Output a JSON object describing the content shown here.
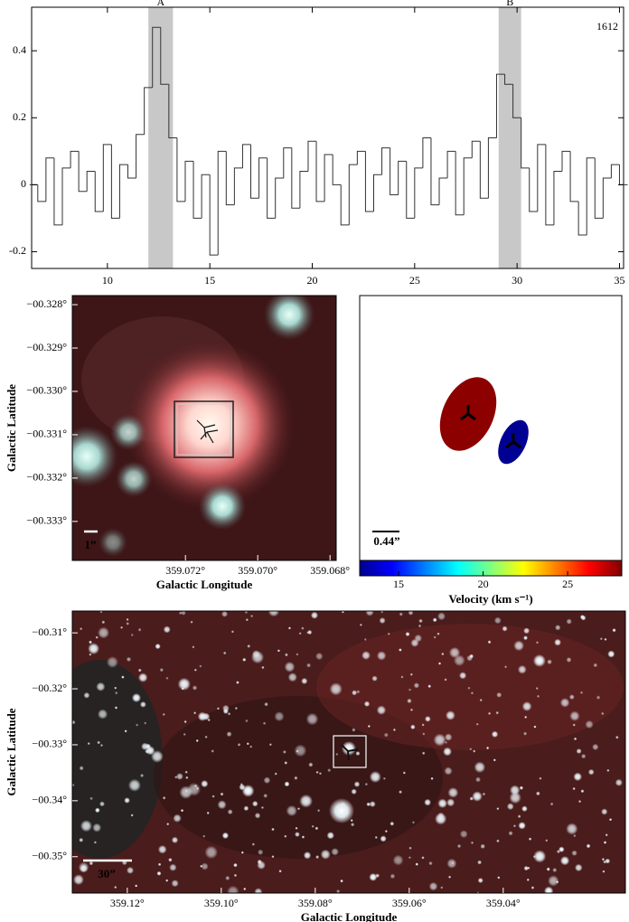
{
  "chart_data": [
    {
      "type": "step",
      "annotation": "1612",
      "bands": [
        {
          "label": "A",
          "range": [
            12.0,
            13.2
          ]
        },
        {
          "label": "B",
          "range": [
            29.1,
            30.2
          ]
        }
      ],
      "band_color": "#c8c8c8",
      "color": "#333333",
      "x": [
        6.4,
        6.8,
        7.2,
        7.6,
        8.0,
        8.4,
        8.8,
        9.2,
        9.6,
        10.0,
        10.4,
        10.8,
        11.2,
        11.6,
        12.0,
        12.4,
        12.8,
        13.2,
        13.6,
        14.0,
        14.4,
        14.8,
        15.2,
        15.6,
        16.0,
        16.4,
        16.8,
        17.2,
        17.6,
        18.0,
        18.4,
        18.8,
        19.2,
        19.6,
        20.0,
        20.4,
        20.8,
        21.2,
        21.6,
        22.0,
        22.4,
        22.8,
        23.2,
        23.6,
        24.0,
        24.4,
        24.8,
        25.2,
        25.6,
        26.0,
        26.4,
        26.8,
        27.2,
        27.6,
        28.0,
        28.4,
        28.8,
        29.2,
        29.6,
        30.0,
        30.4,
        30.8,
        31.2,
        31.6,
        32.0,
        32.4,
        32.8,
        33.2,
        33.6,
        34.0,
        34.4,
        34.8,
        35.2
      ],
      "values": [
        0.0,
        -0.05,
        0.08,
        -0.12,
        0.05,
        0.1,
        -0.02,
        0.04,
        -0.08,
        0.12,
        -0.1,
        0.06,
        0.02,
        0.15,
        0.29,
        0.47,
        0.3,
        0.14,
        -0.05,
        0.07,
        -0.1,
        0.03,
        -0.21,
        0.1,
        -0.06,
        0.05,
        0.12,
        -0.04,
        0.08,
        -0.1,
        0.02,
        0.11,
        -0.07,
        0.04,
        0.13,
        -0.05,
        0.09,
        0.0,
        -0.12,
        0.06,
        0.1,
        -0.08,
        0.03,
        0.11,
        -0.03,
        0.07,
        -0.1,
        0.05,
        0.14,
        -0.06,
        0.02,
        0.1,
        -0.09,
        0.08,
        0.13,
        -0.04,
        0.14,
        0.33,
        0.3,
        0.2,
        0.05,
        -0.08,
        0.12,
        -0.12,
        0.04,
        0.1,
        -0.05,
        -0.15,
        0.08,
        -0.1,
        0.02,
        0.06,
        0.0
      ],
      "xlim": [
        6.3,
        35.2
      ],
      "ylim": [
        -0.25,
        0.53
      ],
      "xticks": [
        10,
        15,
        20,
        25,
        30,
        35
      ],
      "yticks": [
        -0.2,
        0,
        0.2,
        0.4
      ]
    },
    {
      "type": "image",
      "xlabel": "Galactic Longitude",
      "ylabel": "Galactic Latitude",
      "scale_label": "1”",
      "xlim": [
        359.07513,
        359.06783
      ],
      "ylim": [
        -0.3339,
        -0.32779
      ],
      "xticks": [
        {
          "value": 359.072,
          "label": "359.072°"
        },
        {
          "value": 359.07,
          "label": "359.070°"
        },
        {
          "value": 359.068,
          "label": "359.068°"
        }
      ],
      "yticks": [
        {
          "value": -0.328,
          "label": "−00.328°"
        },
        {
          "value": -0.329,
          "label": "−00.329°"
        },
        {
          "value": -0.33,
          "label": "−00.330°"
        },
        {
          "value": -0.331,
          "label": "−00.331°"
        },
        {
          "value": -0.332,
          "label": "−00.332°"
        },
        {
          "value": -0.333,
          "label": "−00.333°"
        }
      ]
    },
    {
      "type": "ellipse",
      "scale_label": "0.44”",
      "colorbar_label": "Velocity (km s⁻¹)",
      "values": [
        28,
        13
      ],
      "clim": [
        12.7,
        28.2
      ],
      "cticks": [
        15,
        20,
        25
      ]
    },
    {
      "type": "image",
      "xlabel": "Galactic Longitude",
      "ylabel": "Galactic Latitude",
      "scale_label": "30”",
      "xlim": [
        359.1317,
        359.014
      ],
      "ylim": [
        -0.3565,
        -0.3061
      ],
      "xticks": [
        {
          "value": 359.12,
          "label": "359.12°"
        },
        {
          "value": 359.1,
          "label": "359.10°"
        },
        {
          "value": 359.08,
          "label": "359.08°"
        },
        {
          "value": 359.06,
          "label": "359.06°"
        },
        {
          "value": 359.04,
          "label": "359.04°"
        }
      ],
      "yticks": [
        {
          "value": -0.31,
          "label": "−00.31°"
        },
        {
          "value": -0.32,
          "label": "−00.32°"
        },
        {
          "value": -0.33,
          "label": "−00.33°"
        },
        {
          "value": -0.34,
          "label": "−00.34°"
        },
        {
          "value": -0.35,
          "label": "−00.35°"
        }
      ]
    }
  ]
}
